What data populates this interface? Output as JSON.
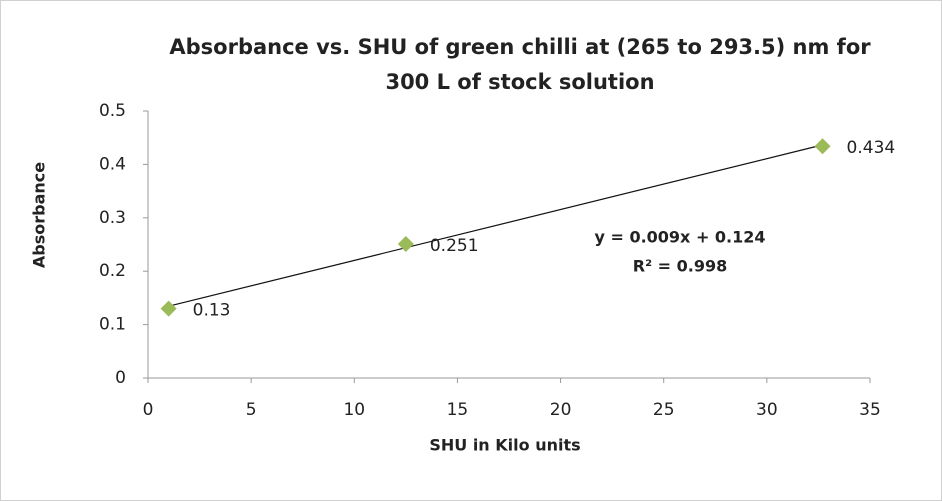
{
  "chart_data": {
    "type": "scatter",
    "title": [
      "Absorbance vs. SHU of green chilli at (265 to 293.5) nm for",
      "300 L of stock solution"
    ],
    "xlabel": "SHU in Kilo units",
    "ylabel": "Absorbance",
    "series": [
      {
        "name": "Absorbance",
        "color": "#9bbb59",
        "x": [
          1,
          12.5,
          32.7
        ],
        "values": [
          0.13,
          0.251,
          0.434
        ]
      }
    ],
    "trendline": "linear",
    "annotations": [
      "y = 0.009x + 0.124",
      "R² = 0.998"
    ],
    "xlim": [
      0,
      35
    ],
    "xticks": [
      0,
      5,
      10,
      15,
      20,
      25,
      30,
      35
    ],
    "ylim": [
      0,
      0.5
    ],
    "yticks": [
      0,
      0.1,
      0.2,
      0.3,
      0.4,
      0.5
    ],
    "grid": false
  }
}
